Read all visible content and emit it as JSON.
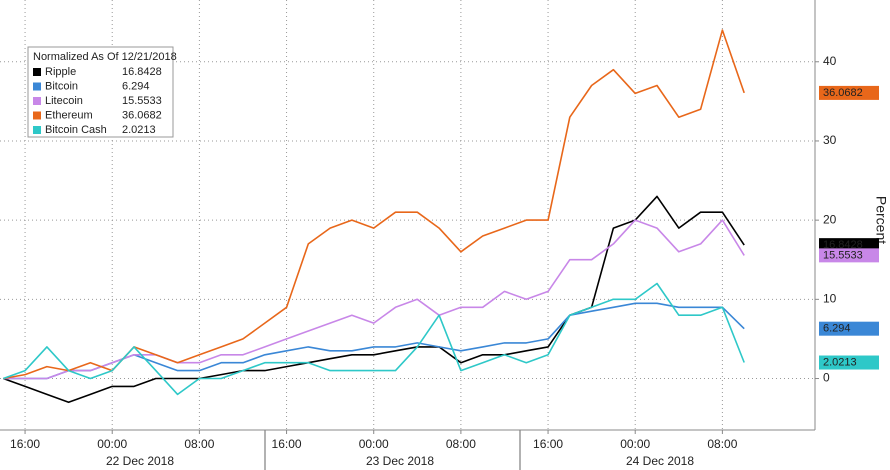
{
  "chart_data": {
    "type": "line",
    "legend_title": "Normalized As Of 12/21/2018",
    "y_label": "Percent",
    "x": [
      -2,
      0,
      2,
      4,
      6,
      8,
      10,
      12,
      14,
      16,
      18,
      20,
      22,
      24,
      26,
      28,
      30,
      32,
      34,
      36,
      38,
      40,
      42,
      44,
      46,
      48,
      50,
      52,
      54,
      56,
      58,
      60,
      62,
      64,
      66
    ],
    "xlim": [
      -2.3,
      72.5
    ],
    "xticks": [
      {
        "value": 0,
        "label": "16:00"
      },
      {
        "value": 8,
        "label": "00:00"
      },
      {
        "value": 16,
        "label": "08:00"
      },
      {
        "value": 24,
        "label": "16:00"
      },
      {
        "value": 32,
        "label": "00:00"
      },
      {
        "value": 40,
        "label": "08:00"
      },
      {
        "value": 48,
        "label": "16:00"
      },
      {
        "value": 56,
        "label": "00:00"
      },
      {
        "value": 64,
        "label": "08:00"
      }
    ],
    "dates": [
      "22 Dec 2018",
      "23 Dec 2018",
      "24 Dec 2018"
    ],
    "ylim": [
      -6.5,
      47.8
    ],
    "yticks": [
      0,
      10,
      20,
      30,
      40
    ],
    "grid": true,
    "series": [
      {
        "name": "Ripple",
        "color": "#000000",
        "values": [
          0,
          -1,
          -2,
          -3,
          -2,
          -1,
          -1,
          0,
          0,
          0,
          0.5,
          1,
          1,
          1.5,
          2,
          2.5,
          3,
          3,
          3.5,
          4,
          4,
          2,
          3,
          3,
          3.5,
          4,
          8,
          9,
          19,
          20,
          23,
          19,
          21,
          21,
          16.8428
        ]
      },
      {
        "name": "Bitcoin",
        "color": "#3a87d6",
        "values": [
          0,
          0,
          0,
          1,
          1,
          2,
          3,
          2,
          1,
          1,
          2,
          2,
          3,
          3.5,
          4,
          3.5,
          3.5,
          4,
          4,
          4.5,
          4,
          3.5,
          4,
          4.5,
          4.5,
          5,
          8,
          8.5,
          9,
          9.5,
          9.5,
          9,
          9,
          9,
          6.294
        ]
      },
      {
        "name": "Litecoin",
        "color": "#c887e8",
        "values": [
          0,
          0,
          0,
          1,
          1,
          2,
          3,
          3,
          2,
          2,
          3,
          3,
          4,
          5,
          6,
          7,
          8,
          7,
          9,
          10,
          8,
          9,
          9,
          11,
          10,
          11,
          15,
          15,
          17,
          20,
          19,
          16,
          17,
          20,
          15.5533
        ]
      },
      {
        "name": "Ethereum",
        "color": "#e8671a",
        "values": [
          0,
          0.5,
          1.5,
          1,
          2,
          1,
          4,
          3,
          2,
          3,
          4,
          5,
          7,
          9,
          17,
          19,
          20,
          19,
          21,
          21,
          19,
          16,
          18,
          19,
          20,
          20,
          33,
          37,
          39,
          36,
          37,
          33,
          34,
          44,
          36.0682
        ]
      },
      {
        "name": "Bitcoin Cash",
        "color": "#2ec8c8",
        "values": [
          0,
          1,
          4,
          1,
          0,
          1,
          4,
          1,
          -2,
          0,
          0,
          1,
          2,
          2,
          2,
          1,
          1,
          1,
          1,
          4,
          8,
          1,
          2,
          3,
          2,
          3,
          8,
          9,
          10,
          10,
          12,
          8,
          8,
          9,
          2.0213
        ]
      }
    ]
  }
}
